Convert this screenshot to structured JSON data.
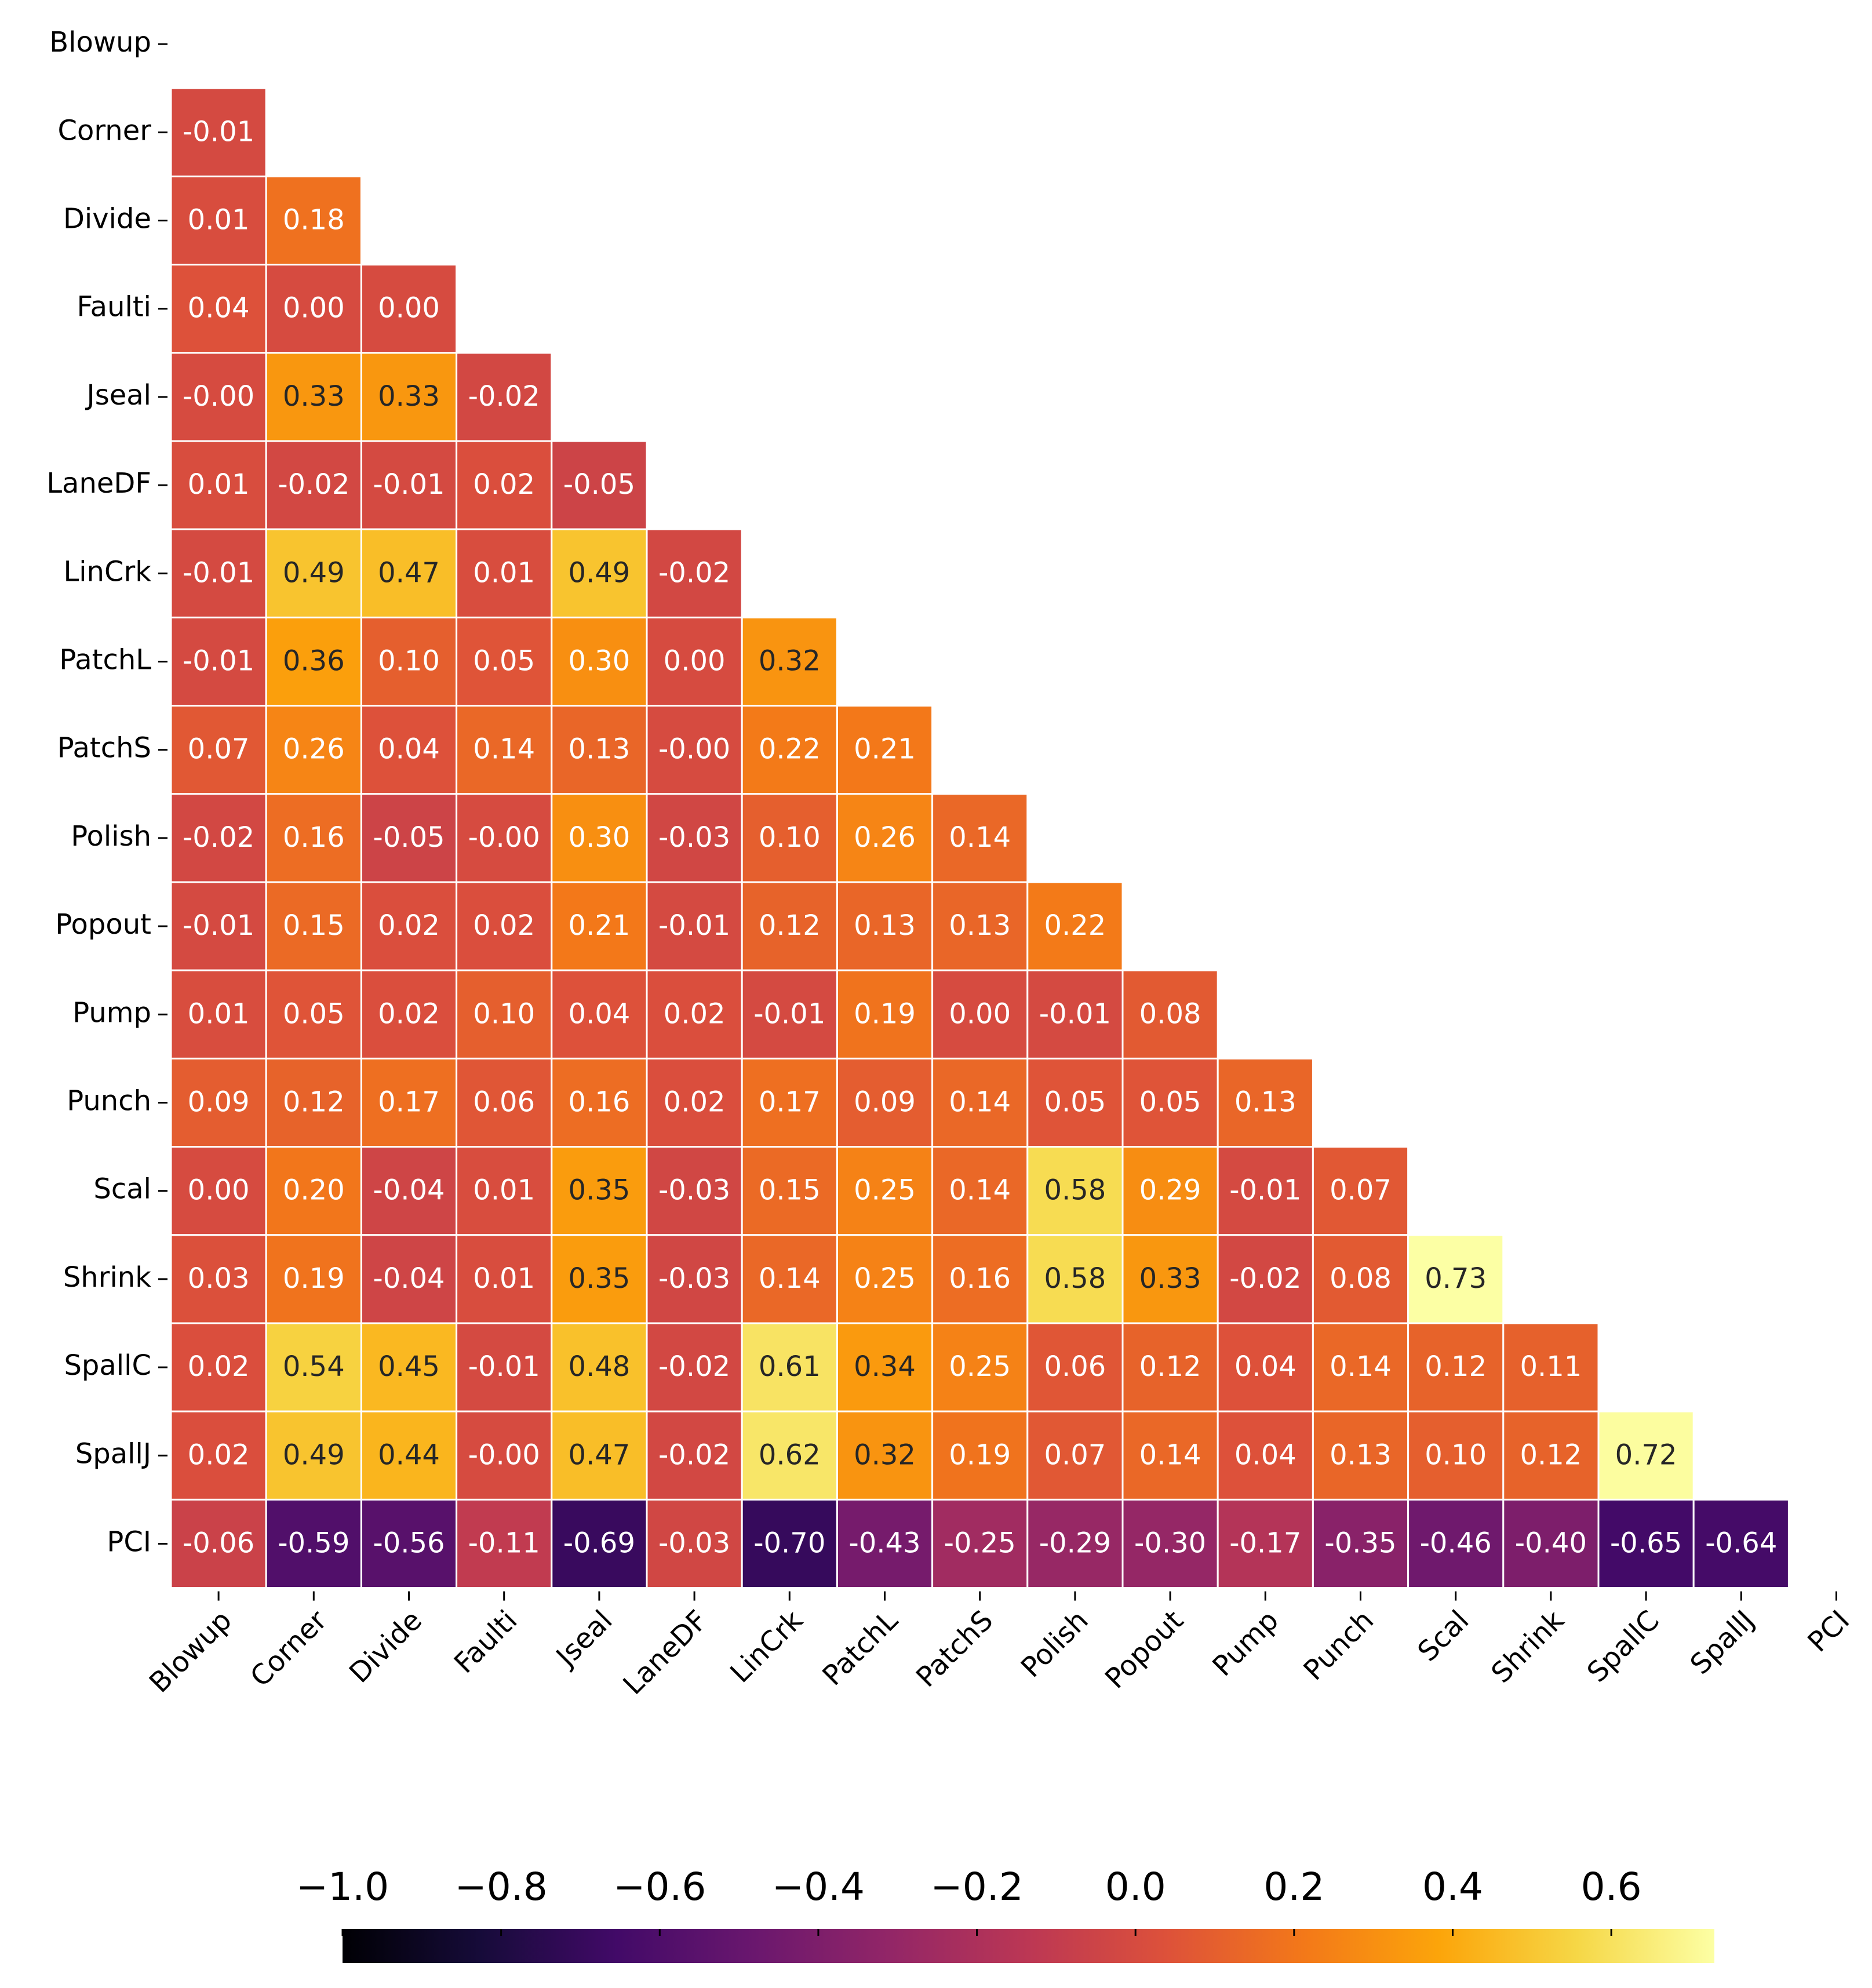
{
  "chart_data": {
    "type": "heatmap",
    "labels": [
      "Blowup",
      "Corner",
      "Divide",
      "Faulti",
      "Jseal",
      "LaneDF",
      "LinCrk",
      "PatchL",
      "PatchS",
      "Polish",
      "Popout",
      "Pump",
      "Punch",
      "Scal",
      "Shrink",
      "SpallC",
      "SpallJ",
      "PCI"
    ],
    "values": [
      [],
      [
        -0.01
      ],
      [
        0.01,
        0.18
      ],
      [
        0.04,
        0.0,
        0.0
      ],
      [
        -0.0,
        0.33,
        0.33,
        -0.02
      ],
      [
        0.01,
        -0.02,
        -0.01,
        0.02,
        -0.05
      ],
      [
        -0.01,
        0.49,
        0.47,
        0.01,
        0.49,
        -0.02
      ],
      [
        -0.01,
        0.36,
        0.1,
        0.05,
        0.3,
        0.0,
        0.32
      ],
      [
        0.07,
        0.26,
        0.04,
        0.14,
        0.13,
        -0.0,
        0.22,
        0.21
      ],
      [
        -0.02,
        0.16,
        -0.05,
        -0.0,
        0.3,
        -0.03,
        0.1,
        0.26,
        0.14
      ],
      [
        -0.01,
        0.15,
        0.02,
        0.02,
        0.21,
        -0.01,
        0.12,
        0.13,
        0.13,
        0.22
      ],
      [
        0.01,
        0.05,
        0.02,
        0.1,
        0.04,
        0.02,
        -0.01,
        0.19,
        0.0,
        -0.01,
        0.08
      ],
      [
        0.09,
        0.12,
        0.17,
        0.06,
        0.16,
        0.02,
        0.17,
        0.09,
        0.14,
        0.05,
        0.05,
        0.13
      ],
      [
        0.0,
        0.2,
        -0.04,
        0.01,
        0.35,
        -0.03,
        0.15,
        0.25,
        0.14,
        0.58,
        0.29,
        -0.01,
        0.07
      ],
      [
        0.03,
        0.19,
        -0.04,
        0.01,
        0.35,
        -0.03,
        0.14,
        0.25,
        0.16,
        0.58,
        0.33,
        -0.02,
        0.08,
        0.73
      ],
      [
        0.02,
        0.54,
        0.45,
        -0.01,
        0.48,
        -0.02,
        0.61,
        0.34,
        0.25,
        0.06,
        0.12,
        0.04,
        0.14,
        0.12,
        0.11
      ],
      [
        0.02,
        0.49,
        0.44,
        -0.0,
        0.47,
        -0.02,
        0.62,
        0.32,
        0.19,
        0.07,
        0.14,
        0.04,
        0.13,
        0.1,
        0.12,
        0.72
      ],
      [
        -0.06,
        -0.59,
        -0.56,
        -0.11,
        -0.69,
        -0.03,
        -0.7,
        -0.43,
        -0.25,
        -0.29,
        -0.3,
        -0.17,
        -0.35,
        -0.46,
        -0.4,
        -0.65,
        -0.64
      ]
    ],
    "value_labels": [
      [],
      [
        "-0.01"
      ],
      [
        "0.01",
        "0.18"
      ],
      [
        "0.04",
        "0.00",
        "0.00"
      ],
      [
        "-0.00",
        "0.33",
        "0.33",
        "-0.02"
      ],
      [
        "0.01",
        "-0.02",
        "-0.01",
        "0.02",
        "-0.05"
      ],
      [
        "-0.01",
        "0.49",
        "0.47",
        "0.01",
        "0.49",
        "-0.02"
      ],
      [
        "-0.01",
        "0.36",
        "0.10",
        "0.05",
        "0.30",
        "0.00",
        "0.32"
      ],
      [
        "0.07",
        "0.26",
        "0.04",
        "0.14",
        "0.13",
        "-0.00",
        "0.22",
        "0.21"
      ],
      [
        "-0.02",
        "0.16",
        "-0.05",
        "-0.00",
        "0.30",
        "-0.03",
        "0.10",
        "0.26",
        "0.14"
      ],
      [
        "-0.01",
        "0.15",
        "0.02",
        "0.02",
        "0.21",
        "-0.01",
        "0.12",
        "0.13",
        "0.13",
        "0.22"
      ],
      [
        "0.01",
        "0.05",
        "0.02",
        "0.10",
        "0.04",
        "0.02",
        "-0.01",
        "0.19",
        "0.00",
        "-0.01",
        "0.08"
      ],
      [
        "0.09",
        "0.12",
        "0.17",
        "0.06",
        "0.16",
        "0.02",
        "0.17",
        "0.09",
        "0.14",
        "0.05",
        "0.05",
        "0.13"
      ],
      [
        "0.00",
        "0.20",
        "-0.04",
        "0.01",
        "0.35",
        "-0.03",
        "0.15",
        "0.25",
        "0.14",
        "0.58",
        "0.29",
        "-0.01",
        "0.07"
      ],
      [
        "0.03",
        "0.19",
        "-0.04",
        "0.01",
        "0.35",
        "-0.03",
        "0.14",
        "0.25",
        "0.16",
        "0.58",
        "0.33",
        "-0.02",
        "0.08",
        "0.73"
      ],
      [
        "0.02",
        "0.54",
        "0.45",
        "-0.01",
        "0.48",
        "-0.02",
        "0.61",
        "0.34",
        "0.25",
        "0.06",
        "0.12",
        "0.04",
        "0.14",
        "0.12",
        "0.11"
      ],
      [
        "0.02",
        "0.49",
        "0.44",
        "-0.00",
        "0.47",
        "-0.02",
        "0.62",
        "0.32",
        "0.19",
        "0.07",
        "0.14",
        "0.04",
        "0.13",
        "0.10",
        "0.12",
        "0.72"
      ],
      [
        "-0.06",
        "-0.59",
        "-0.56",
        "-0.11",
        "-0.69",
        "-0.03",
        "-0.70",
        "-0.43",
        "-0.25",
        "-0.29",
        "-0.30",
        "-0.17",
        "-0.35",
        "-0.46",
        "-0.40",
        "-0.65",
        "-0.64"
      ]
    ],
    "clim": [
      -1,
      0.73
    ],
    "cticks": [
      {
        "value": -1.0,
        "label": "−1.0"
      },
      {
        "value": -0.8,
        "label": "−0.8"
      },
      {
        "value": -0.6,
        "label": "−0.6"
      },
      {
        "value": -0.4,
        "label": "−0.4"
      },
      {
        "value": -0.2,
        "label": "−0.2"
      },
      {
        "value": 0.0,
        "label": "0.0"
      },
      0.2,
      0.4,
      0.6
    ],
    "colormap": [
      "#000004",
      "#160b39",
      "#420a68",
      "#6a176e",
      "#932667",
      "#bc3754",
      "#dd513a",
      "#f37819",
      "#fca50a",
      "#f6d746",
      "#fcffa4"
    ],
    "cell_edge_color": "#ffffff"
  }
}
